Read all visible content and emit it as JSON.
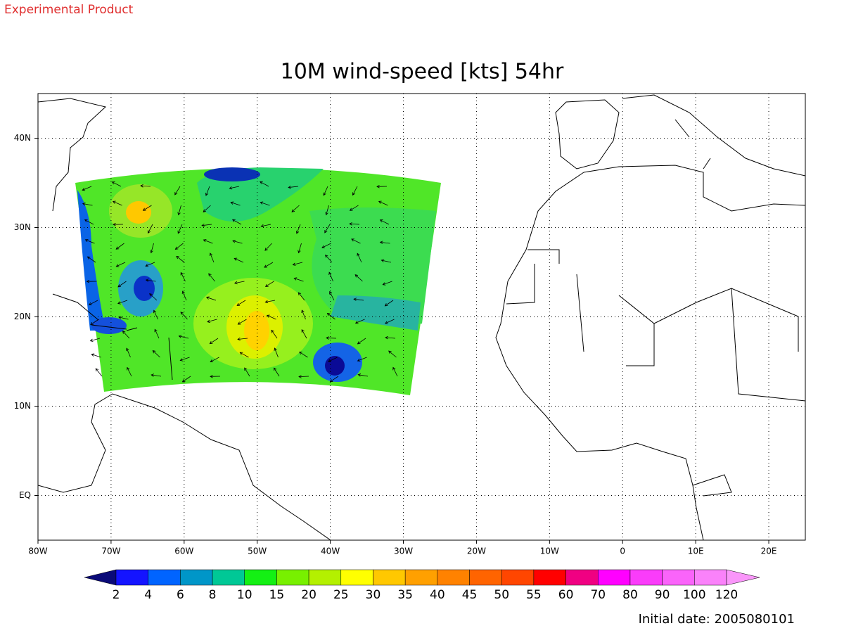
{
  "header": {
    "label": "Experimental Product"
  },
  "map": {
    "title": "10M wind-speed [kts] 54hr",
    "lon_range": [
      -80,
      25
    ],
    "lat_range": [
      -5,
      45
    ],
    "lon_ticks": [
      {
        "value": -80,
        "label": "80W"
      },
      {
        "value": -70,
        "label": "70W"
      },
      {
        "value": -60,
        "label": "60W"
      },
      {
        "value": -50,
        "label": "50W"
      },
      {
        "value": -40,
        "label": "40W"
      },
      {
        "value": -30,
        "label": "30W"
      },
      {
        "value": -20,
        "label": "20W"
      },
      {
        "value": -10,
        "label": "10W"
      },
      {
        "value": 0,
        "label": "0"
      },
      {
        "value": 10,
        "label": "10E"
      },
      {
        "value": 20,
        "label": "20E"
      }
    ],
    "lat_ticks": [
      {
        "value": 0,
        "label": "EQ"
      },
      {
        "value": 10,
        "label": "10N"
      },
      {
        "value": 20,
        "label": "20N"
      },
      {
        "value": 30,
        "label": "30N"
      },
      {
        "value": 40,
        "label": "40N"
      }
    ]
  },
  "colorbar": {
    "levels": [
      2,
      4,
      6,
      8,
      10,
      15,
      20,
      25,
      30,
      35,
      40,
      45,
      50,
      55,
      60,
      70,
      80,
      90,
      100,
      120
    ],
    "colors": [
      "#0a0a78",
      "#1414ff",
      "#0064ff",
      "#0096c8",
      "#00c896",
      "#14f014",
      "#78f000",
      "#b4f000",
      "#ffff00",
      "#ffc800",
      "#ffa000",
      "#ff8200",
      "#ff6400",
      "#ff4600",
      "#ff0000",
      "#f00082",
      "#ff00ff",
      "#fa3cfa",
      "#fa64fa",
      "#fa82fa",
      "#fa96fa"
    ]
  },
  "footer": {
    "initial_date": "Initial date: 2005080101"
  }
}
